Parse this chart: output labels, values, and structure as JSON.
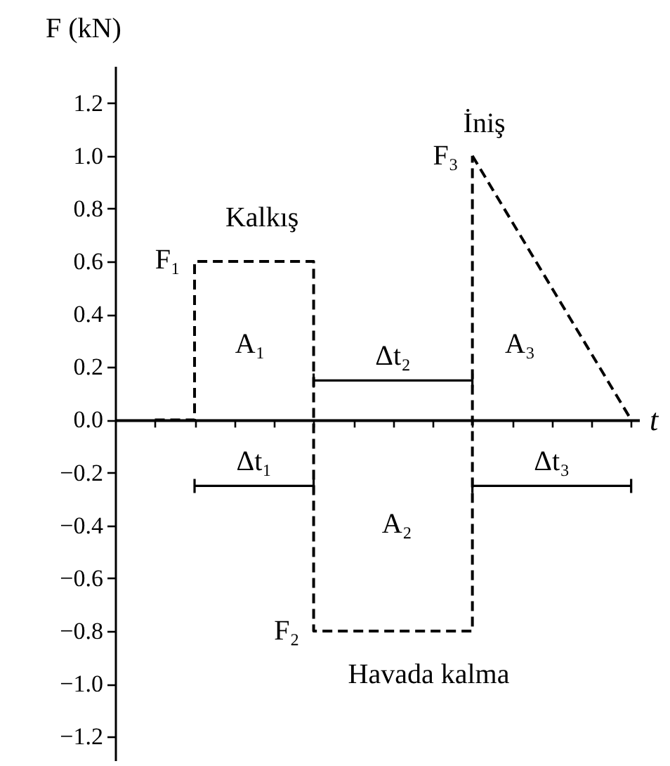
{
  "chart_data": {
    "type": "step",
    "xlabel": "t",
    "ylabel": "F (kN)",
    "categories": [
      null,
      null,
      null,
      null,
      null,
      null,
      null,
      null,
      null,
      null,
      null,
      null,
      null
    ],
    "series": [
      {
        "color": "#000000",
        "values": [
          0,
          0.6,
          0.6,
          0.6,
          -0.8,
          -0.8,
          -0.8,
          -0.8,
          1.0,
          null,
          null,
          null,
          null
        ]
      },
      {
        "type": "line",
        "color": "#000000",
        "values": [
          null,
          null,
          null,
          null,
          null,
          null,
          null,
          null,
          1.0,
          0.75,
          0.5,
          0.25,
          0
        ]
      }
    ],
    "line_style": "dashed",
    "ylim": [
      -1.29,
      1.34
    ],
    "yticks": [
      {
        "value": -1.2,
        "label": "−1.2"
      },
      {
        "value": -1,
        "label": "−1.0"
      },
      {
        "value": -0.8,
        "label": "−0.8"
      },
      {
        "value": -0.6,
        "label": "−0.6"
      },
      {
        "value": -0.4,
        "label": "−0.4"
      },
      {
        "value": -0.2,
        "label": "−0.2"
      },
      {
        "value": 0,
        "label": "0.0"
      },
      0.2,
      0.4,
      0.6,
      0.8,
      {
        "value": 1,
        "label": "1.0"
      },
      1.2
    ],
    "tick_labels": "y",
    "annotations": [
      "F₁",
      "F₂",
      "F₃",
      "Kalkış",
      "İniş",
      "Havada kalma",
      "A₁",
      "A₂",
      "A₃",
      "Δt₁",
      "Δt₂",
      "Δt₃"
    ]
  }
}
